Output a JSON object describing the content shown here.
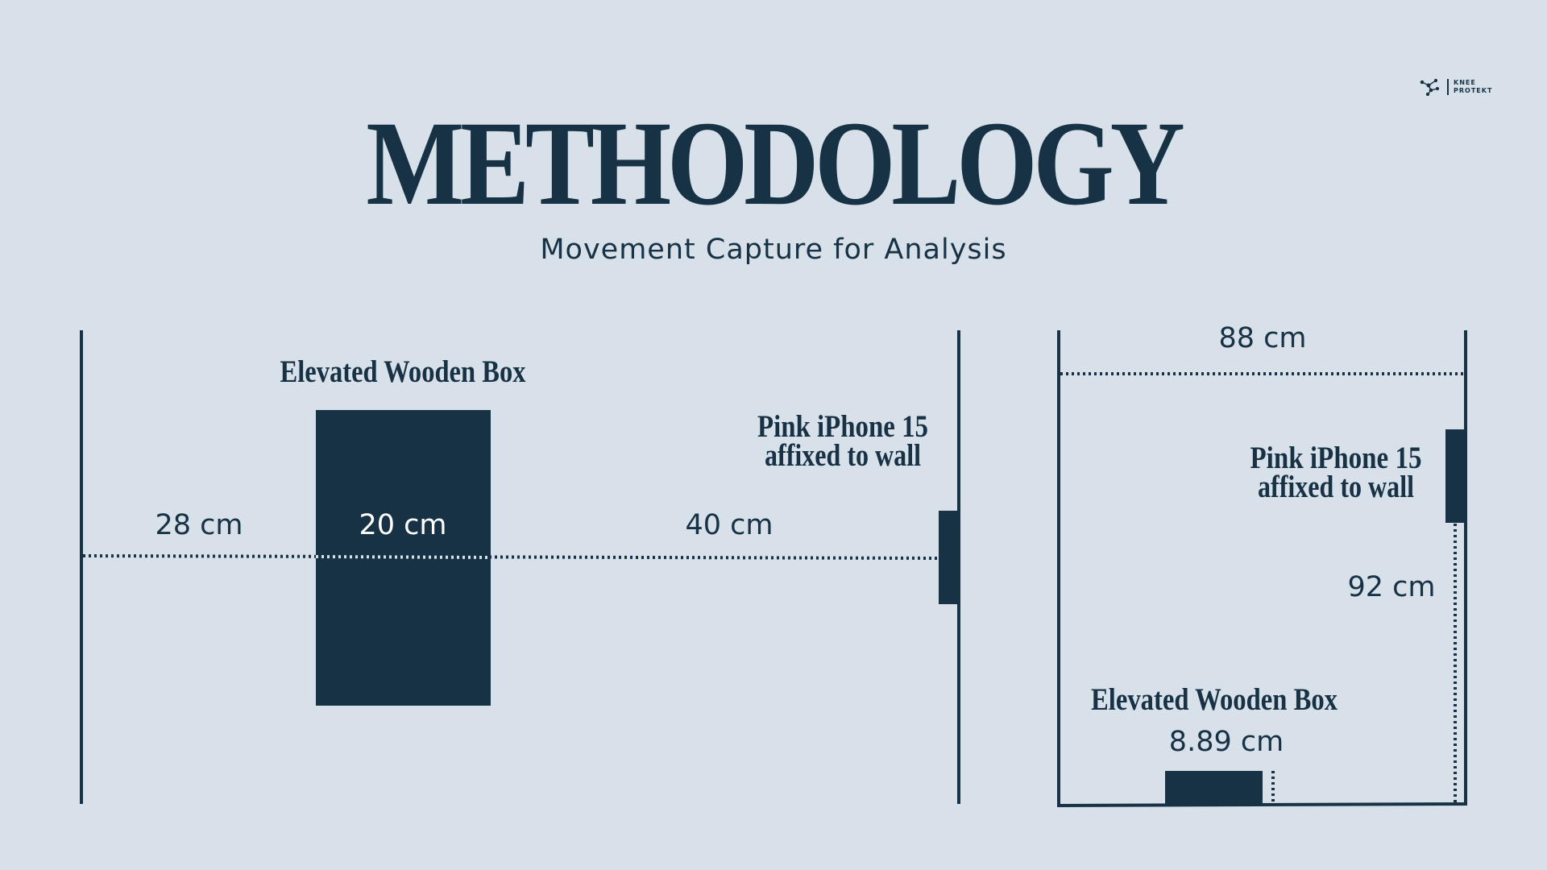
{
  "header": {
    "title": "METHODOLOGY",
    "subtitle": "Movement Capture for Analysis"
  },
  "logo": {
    "line1": "KNEE",
    "line2": "PROTEKT",
    "icon": "constellation-icon"
  },
  "top_view": {
    "box_label": "Elevated Wooden Box",
    "phone_label_line1": "Pink iPhone 15",
    "phone_label_line2": "affixed to wall",
    "dist_wall_to_box": "28 cm",
    "box_width": "20 cm",
    "dist_box_to_phone": "40 cm"
  },
  "side_view": {
    "width_label": "88 cm",
    "phone_label_line1": "Pink iPhone 15",
    "phone_label_line2": "affixed to wall",
    "phone_height": "92 cm",
    "box_label": "Elevated Wooden Box",
    "box_height": "8.89 cm"
  },
  "colors": {
    "background": "#d8e0ea",
    "ink": "#173244"
  }
}
